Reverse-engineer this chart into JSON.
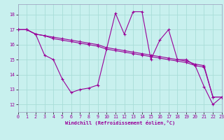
{
  "xlabel": "Windchill (Refroidissement éolien,°C)",
  "xlim": [
    0,
    23
  ],
  "ylim": [
    11.5,
    18.7
  ],
  "yticks": [
    12,
    13,
    14,
    15,
    16,
    17,
    18
  ],
  "xticks": [
    0,
    1,
    2,
    3,
    4,
    5,
    6,
    7,
    8,
    9,
    10,
    11,
    12,
    13,
    14,
    15,
    16,
    17,
    18,
    19,
    20,
    21,
    22,
    23
  ],
  "bg_color": "#c8f0ee",
  "grid_color": "#a8ddd8",
  "line_color": "#990099",
  "lw": 0.8,
  "ms": 2.5,
  "mew": 0.8,
  "series1_y": [
    17.0,
    17.0,
    16.7,
    16.6,
    16.5,
    16.4,
    16.3,
    16.2,
    16.1,
    16.0,
    15.8,
    15.7,
    15.6,
    15.5,
    15.4,
    15.3,
    15.2,
    15.1,
    15.0,
    14.9,
    14.7,
    14.6,
    12.5,
    12.5
  ],
  "series2_y": [
    17.0,
    17.0,
    16.7,
    16.6,
    16.4,
    16.3,
    16.2,
    16.1,
    16.0,
    15.9,
    15.7,
    15.6,
    15.5,
    15.4,
    15.3,
    15.2,
    15.1,
    15.0,
    14.9,
    14.8,
    14.6,
    14.5,
    12.5,
    12.5
  ],
  "series3_y": [
    17.0,
    17.0,
    16.7,
    15.3,
    15.0,
    13.7,
    12.8,
    13.0,
    13.1,
    13.3,
    15.7,
    18.1,
    16.7,
    18.2,
    18.2,
    15.0,
    16.3,
    17.0,
    15.0,
    15.0,
    14.6,
    13.2,
    12.0,
    12.5
  ]
}
